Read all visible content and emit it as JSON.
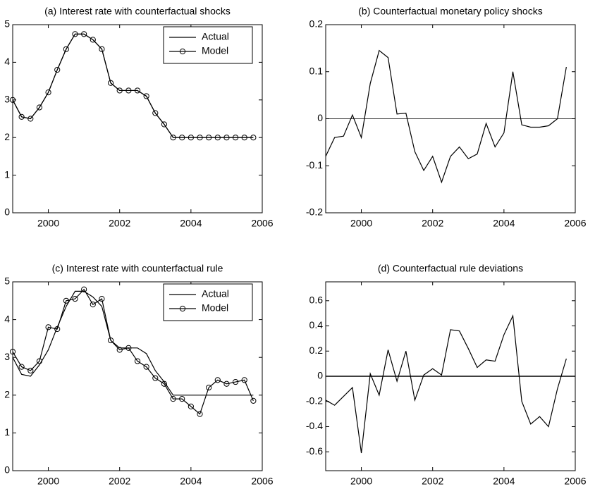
{
  "chart_data": [
    {
      "type": "line",
      "title": "(a) Interest rate with counterfactual shocks",
      "x": [
        1999,
        1999.25,
        1999.5,
        1999.75,
        2000,
        2000.25,
        2000.5,
        2000.75,
        2001,
        2001.25,
        2001.5,
        2001.75,
        2002,
        2002.25,
        2002.5,
        2002.75,
        2003,
        2003.25,
        2003.5,
        2003.75,
        2004,
        2004.25,
        2004.5,
        2004.75,
        2005,
        2005.25,
        2005.5,
        2005.75
      ],
      "series": [
        {
          "name": "Actual",
          "color": "#000000",
          "values": [
            3.0,
            2.55,
            2.5,
            2.8,
            3.2,
            3.8,
            4.35,
            4.75,
            4.75,
            4.6,
            4.35,
            3.45,
            3.25,
            3.25,
            3.25,
            3.1,
            2.65,
            2.35,
            2.0,
            2.0,
            2.0,
            2.0,
            2.0,
            2.0,
            2.0,
            2.0,
            2.0,
            2.0
          ]
        },
        {
          "name": "Model",
          "color": "#000000",
          "marker": "circle",
          "values": [
            3.0,
            2.55,
            2.5,
            2.8,
            3.2,
            3.8,
            4.35,
            4.75,
            4.75,
            4.6,
            4.35,
            3.45,
            3.25,
            3.25,
            3.25,
            3.1,
            2.65,
            2.35,
            2.0,
            2.0,
            2.0,
            2.0,
            2.0,
            2.0,
            2.0,
            2.0,
            2.0,
            2.0
          ]
        }
      ],
      "xlim": [
        1999,
        2006
      ],
      "xticks": [
        2000,
        2002,
        2004,
        2006
      ],
      "ylim": [
        0,
        5
      ],
      "yticks": [
        0,
        1,
        2,
        3,
        4,
        5
      ],
      "legend": "upper-right"
    },
    {
      "type": "line",
      "title": "(b) Counterfactual monetary policy shocks",
      "x": [
        1999,
        1999.25,
        1999.5,
        1999.75,
        2000,
        2000.25,
        2000.5,
        2000.75,
        2001,
        2001.25,
        2001.5,
        2001.75,
        2002,
        2002.25,
        2002.5,
        2002.75,
        2003,
        2003.25,
        2003.5,
        2003.75,
        2004,
        2004.25,
        2004.5,
        2004.75,
        2005,
        2005.25,
        2005.5,
        2005.75
      ],
      "series": [
        {
          "color": "#000000",
          "values": [
            -0.08,
            -0.04,
            -0.037,
            0.008,
            -0.04,
            0.075,
            0.145,
            0.13,
            0.01,
            0.012,
            -0.07,
            -0.11,
            -0.08,
            -0.135,
            -0.08,
            -0.06,
            -0.085,
            -0.075,
            -0.01,
            -0.06,
            -0.03,
            0.1,
            -0.013,
            -0.018,
            -0.018,
            -0.015,
            0.0,
            0.11
          ]
        }
      ],
      "xlim": [
        1999,
        2006
      ],
      "xticks": [
        2000,
        2002,
        2004,
        2006
      ],
      "ylim": [
        -0.2,
        0.2
      ],
      "yticks": [
        -0.2,
        -0.1,
        0,
        0.1,
        0.2
      ],
      "hline": 0
    },
    {
      "type": "line",
      "title": "(c) Interest rate with counterfactual rule",
      "x": [
        1999,
        1999.25,
        1999.5,
        1999.75,
        2000,
        2000.25,
        2000.5,
        2000.75,
        2001,
        2001.25,
        2001.5,
        2001.75,
        2002,
        2002.25,
        2002.5,
        2002.75,
        2003,
        2003.25,
        2003.5,
        2003.75,
        2004,
        2004.25,
        2004.5,
        2004.75,
        2005,
        2005.25,
        2005.5,
        2005.75
      ],
      "series": [
        {
          "name": "Actual",
          "color": "#000000",
          "values": [
            3.0,
            2.55,
            2.5,
            2.8,
            3.2,
            3.8,
            4.35,
            4.75,
            4.75,
            4.6,
            4.35,
            3.45,
            3.25,
            3.25,
            3.25,
            3.1,
            2.65,
            2.35,
            2.0,
            2.0,
            2.0,
            2.0,
            2.0,
            2.0,
            2.0,
            2.0,
            2.0,
            2.0
          ]
        },
        {
          "name": "Model",
          "color": "#000000",
          "marker": "circle",
          "values": [
            3.15,
            2.75,
            2.65,
            2.9,
            3.8,
            3.75,
            4.5,
            4.55,
            4.8,
            4.4,
            4.55,
            3.45,
            3.2,
            3.25,
            2.9,
            2.75,
            2.45,
            2.3,
            1.9,
            1.9,
            1.7,
            1.5,
            2.2,
            2.4,
            2.3,
            2.35,
            2.4,
            1.85
          ]
        }
      ],
      "xlim": [
        1999,
        2006
      ],
      "xticks": [
        2000,
        2002,
        2004,
        2006
      ],
      "ylim": [
        0,
        5
      ],
      "yticks": [
        0,
        1,
        2,
        3,
        4,
        5
      ],
      "legend": "upper-right"
    },
    {
      "type": "line",
      "title": "(d) Counterfactual rule deviations",
      "x": [
        1999,
        1999.25,
        1999.5,
        1999.75,
        2000,
        2000.25,
        2000.5,
        2000.75,
        2001,
        2001.25,
        2001.5,
        2001.75,
        2002,
        2002.25,
        2002.5,
        2002.75,
        2003,
        2003.25,
        2003.5,
        2003.75,
        2004,
        2004.25,
        2004.5,
        2004.75,
        2005,
        2005.25,
        2005.5,
        2005.75
      ],
      "series": [
        {
          "color": "#000000",
          "values": [
            -0.19,
            -0.23,
            -0.16,
            -0.09,
            -0.61,
            0.02,
            -0.15,
            0.21,
            -0.04,
            0.2,
            -0.19,
            0.01,
            0.06,
            0.01,
            0.37,
            0.36,
            0.22,
            0.07,
            0.13,
            0.12,
            0.33,
            0.48,
            -0.2,
            -0.38,
            -0.32,
            -0.4,
            -0.1,
            0.14
          ]
        }
      ],
      "xlim": [
        1999,
        2006
      ],
      "xticks": [
        2000,
        2002,
        2004,
        2006
      ],
      "ylim": [
        -0.75,
        0.75
      ],
      "yticks": [
        -0.6,
        -0.4,
        -0.2,
        0,
        0.2,
        0.4,
        0.6
      ],
      "hline": 0
    }
  ]
}
